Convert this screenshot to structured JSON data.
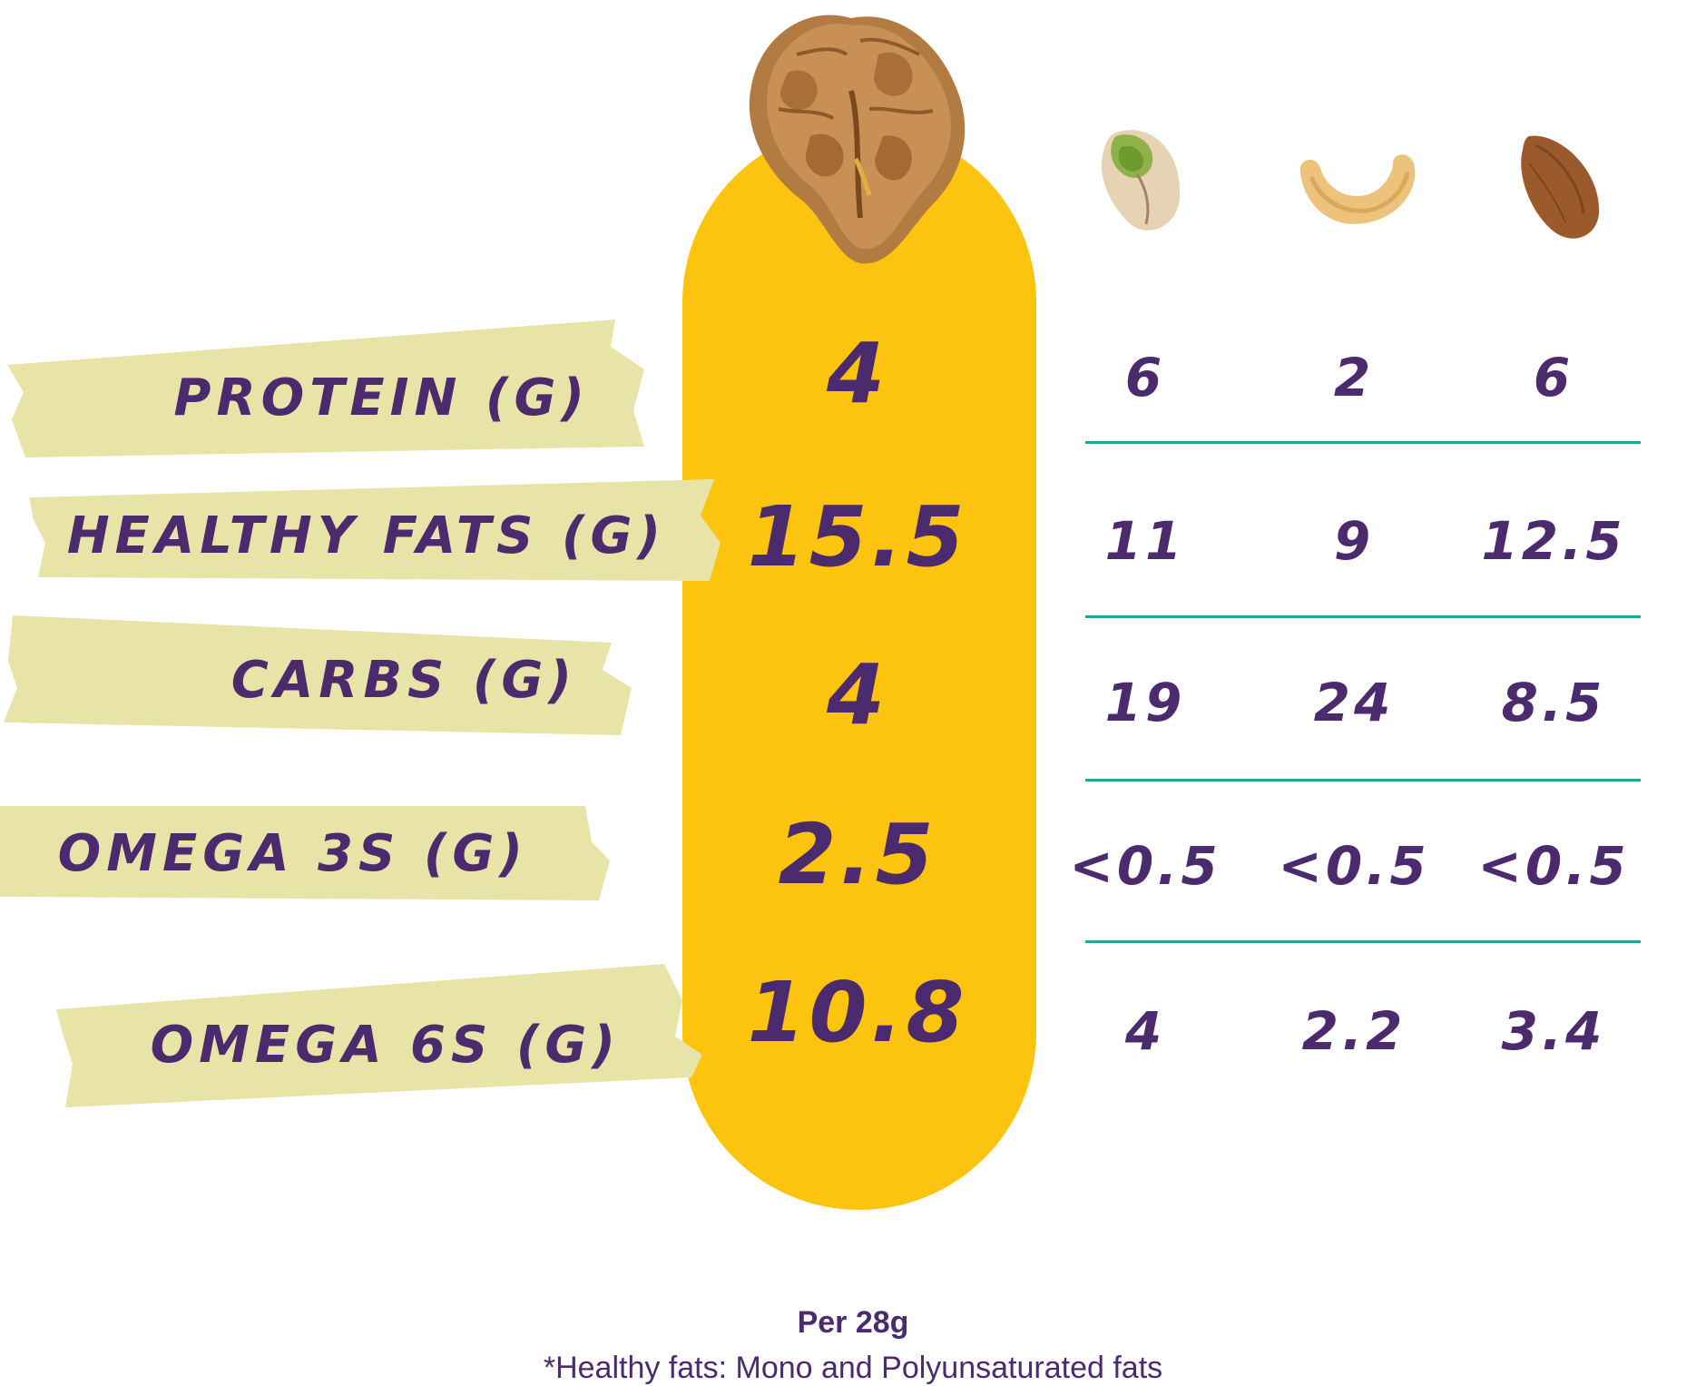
{
  "colors": {
    "accent_pill": "#fcc40f",
    "text": "#4b2a6e",
    "tape": "#e8e4a8",
    "divider": "#1fa698"
  },
  "columns": [
    {
      "name": "walnut",
      "icon": "walnut-icon"
    },
    {
      "name": "pistachio",
      "icon": "pistachio-icon"
    },
    {
      "name": "cashew",
      "icon": "cashew-icon"
    },
    {
      "name": "almond",
      "icon": "almond-icon"
    }
  ],
  "rows": [
    {
      "label": "PROTEIN (G)",
      "walnut": "4",
      "pistachio": "6",
      "cashew": "2",
      "almond": "6"
    },
    {
      "label": "HEALTHY FATS (G)",
      "walnut": "15.5",
      "pistachio": "11",
      "cashew": "9",
      "almond": "12.5"
    },
    {
      "label": "CARBS (G)",
      "walnut": "4",
      "pistachio": "19",
      "cashew": "24",
      "almond": "8.5"
    },
    {
      "label": "OMEGA 3s (G)",
      "walnut": "2.5",
      "pistachio": "<0.5",
      "cashew": "<0.5",
      "almond": "<0.5"
    },
    {
      "label": "OMEGA 6s (G)",
      "walnut": "10.8",
      "pistachio": "4",
      "cashew": "2.2",
      "almond": "3.4"
    }
  ],
  "footer": {
    "serving": "Per 28g",
    "note": "*Healthy fats: Mono and Polyunsaturated fats"
  }
}
